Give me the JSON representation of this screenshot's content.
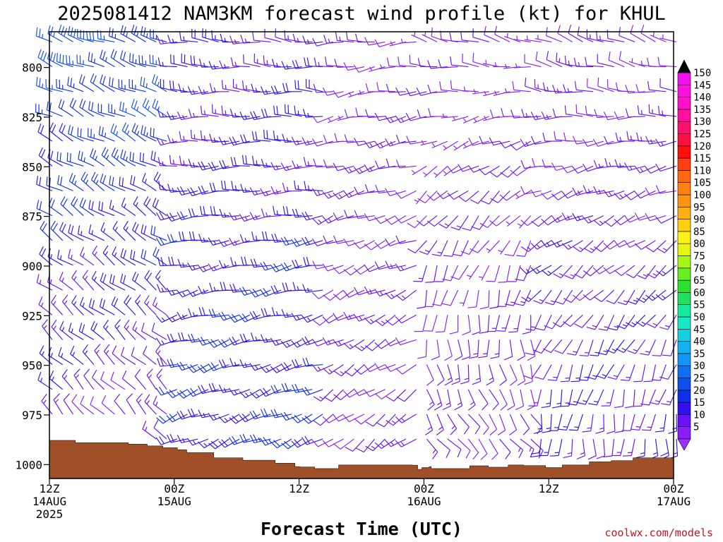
{
  "chart_data": {
    "type": "wind_barb_time_height",
    "title": "2025081412 NAM3KM forecast wind profile (kt) for KHUL",
    "xlabel": "Forecast Time (UTC)",
    "ylabel": "",
    "credit": "coolwx.com/models",
    "units": "kt",
    "x_range_hours": [
      0,
      60
    ],
    "y_range_hpa": [
      782,
      1007
    ],
    "y_ticks": [
      800,
      825,
      850,
      875,
      900,
      925,
      950,
      975,
      1000
    ],
    "y_tick_labels": [
      "800",
      "825",
      "850",
      "875",
      "900",
      "925",
      "950",
      "975",
      "1000"
    ],
    "x_ticks": [
      {
        "hour": 0,
        "line1": "12Z",
        "line2": "14AUG",
        "line3": "2025"
      },
      {
        "hour": 12,
        "line1": "00Z",
        "line2": "15AUG",
        "line3": ""
      },
      {
        "hour": 24,
        "line1": "12Z",
        "line2": "",
        "line3": ""
      },
      {
        "hour": 36,
        "line1": "00Z",
        "line2": "16AUG",
        "line3": ""
      },
      {
        "hour": 48,
        "line1": "12Z",
        "line2": "",
        "line3": ""
      },
      {
        "hour": 60,
        "line1": "00Z",
        "line2": "17AUG",
        "line3": ""
      }
    ],
    "colorbar": {
      "levels": [
        5,
        10,
        15,
        20,
        25,
        30,
        35,
        40,
        45,
        50,
        55,
        60,
        65,
        70,
        75,
        80,
        85,
        90,
        95,
        100,
        105,
        110,
        115,
        120,
        125,
        130,
        135,
        140,
        145,
        150
      ],
      "labels": [
        "5",
        "10",
        "15",
        "20",
        "25",
        "30",
        "35",
        "40",
        "45",
        "50",
        "55",
        "60",
        "65",
        "70",
        "75",
        "80",
        "85",
        "90",
        "95",
        "100",
        "105",
        "110",
        "115",
        "120",
        "125",
        "130",
        "135",
        "140",
        "145",
        "150"
      ],
      "colors": [
        "#8a1ff5",
        "#6a12f5",
        "#3310f0",
        "#1030e8",
        "#1050e8",
        "#1070f0",
        "#1296f5",
        "#14b0f0",
        "#18cfe0",
        "#18e8c8",
        "#16e8a0",
        "#20e060",
        "#30e030",
        "#66ee22",
        "#a8f518",
        "#e6f514",
        "#fff214",
        "#ffd010",
        "#ffb010",
        "#ff9410",
        "#ff8010",
        "#ff6810",
        "#ff4010",
        "#ff1010",
        "#ff1040",
        "#ff1070",
        "#ff10a0",
        "#ff10c8",
        "#ff10e0",
        "#f010f0"
      ],
      "over_color": "#000000",
      "under_color": "#9a30ff"
    },
    "terrain_pressure_hpa": [
      [
        0,
        987.8
      ],
      [
        2.5,
        989.0
      ],
      [
        7.6,
        989.7
      ],
      [
        9.4,
        990.6
      ],
      [
        10.9,
        991.5
      ],
      [
        12.3,
        992.5
      ],
      [
        13.2,
        994.0
      ],
      [
        15.8,
        996.6
      ],
      [
        18.6,
        997.8
      ],
      [
        21.7,
        999.3
      ],
      [
        23.6,
        1001.0
      ],
      [
        24.1,
        1001.2
      ],
      [
        25.5,
        1002.0
      ],
      [
        27.6,
        1002.0
      ],
      [
        27.8,
        1000.2
      ],
      [
        34.9,
        1000.3
      ],
      [
        35.4,
        1002.4
      ],
      [
        35.8,
        1001.5
      ],
      [
        36.5,
        1001.0
      ],
      [
        36.7,
        1002.0
      ],
      [
        40.3,
        1002.0
      ],
      [
        40.4,
        1000.6
      ],
      [
        42.0,
        1000.6
      ],
      [
        42.2,
        1001.3
      ],
      [
        43.8,
        1001.3
      ],
      [
        44.1,
        1000.2
      ],
      [
        45.6,
        1000.5
      ],
      [
        47.4,
        1000.5
      ],
      [
        47.7,
        1001.5
      ],
      [
        49.0,
        1001.5
      ],
      [
        49.3,
        1000.2
      ],
      [
        50.9,
        1000.2
      ],
      [
        51.9,
        998.6
      ],
      [
        54.0,
        998.0
      ],
      [
        56.1,
        996.6
      ],
      [
        60,
        995.3
      ]
    ],
    "wind_barbs": {
      "time_step_hours": 1,
      "pressure_levels_hpa": [
        785,
        797.5,
        810,
        822.5,
        835,
        847.5,
        860,
        872.5,
        885,
        897.5,
        910,
        922.5,
        935,
        947.5,
        960,
        972.5,
        985,
        997.5
      ],
      "regimes": [
        {
          "hours": [
            0,
            11
          ],
          "dir_deg_low_to_high": [
            320,
            290
          ],
          "speed_kt_low_to_high": [
            10,
            26
          ]
        },
        {
          "hours": [
            12,
            26
          ],
          "dir_deg_low_to_high": [
            245,
            275
          ],
          "speed_kt_low_to_high": [
            20,
            15
          ]
        },
        {
          "hours": [
            27,
            35
          ],
          "dir_deg_low_to_high": [
            230,
            265
          ],
          "speed_kt_low_to_high": [
            12,
            10
          ]
        },
        {
          "hours": [
            36,
            46
          ],
          "dir_deg_low_to_high": [
            130,
            285
          ],
          "speed_kt_low_to_high": [
            12,
            8
          ]
        },
        {
          "hours": [
            47,
            60
          ],
          "dir_deg_low_to_high": [
            175,
            290
          ],
          "speed_kt_low_to_high": [
            15,
            10
          ]
        }
      ]
    }
  }
}
